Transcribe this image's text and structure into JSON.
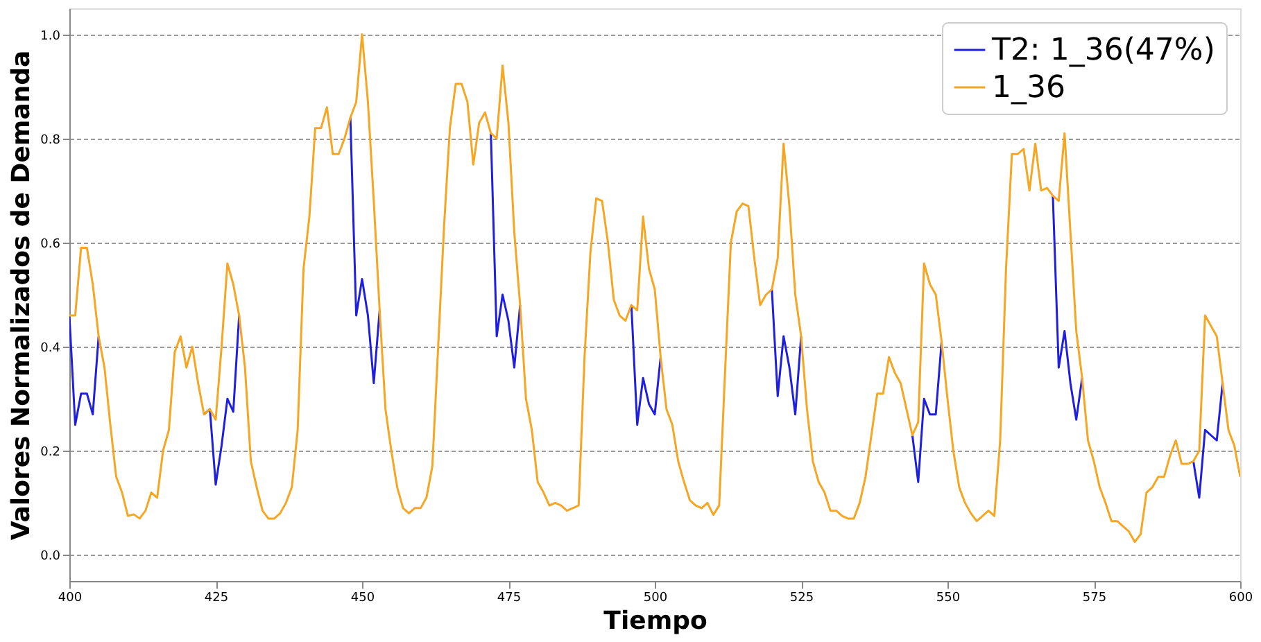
{
  "chart_data": {
    "type": "line",
    "xlabel": "Tiempo",
    "ylabel": "Valores Normalizados de Demanda",
    "x": [
      400,
      401,
      402,
      403,
      404,
      405,
      406,
      407,
      408,
      409,
      410,
      411,
      412,
      413,
      414,
      415,
      416,
      417,
      418,
      419,
      420,
      421,
      422,
      423,
      424,
      425,
      426,
      427,
      428,
      429,
      430,
      431,
      432,
      433,
      434,
      435,
      436,
      437,
      438,
      439,
      440,
      441,
      442,
      443,
      444,
      445,
      446,
      447,
      448,
      449,
      450,
      451,
      452,
      453,
      454,
      455,
      456,
      457,
      458,
      459,
      460,
      461,
      462,
      463,
      464,
      465,
      466,
      467,
      468,
      469,
      470,
      471,
      472,
      473,
      474,
      475,
      476,
      477,
      478,
      479,
      480,
      481,
      482,
      483,
      484,
      485,
      486,
      487,
      488,
      489,
      490,
      491,
      492,
      493,
      494,
      495,
      496,
      497,
      498,
      499,
      500,
      501,
      502,
      503,
      504,
      505,
      506,
      507,
      508,
      509,
      510,
      511,
      512,
      513,
      514,
      515,
      516,
      517,
      518,
      519,
      520,
      521,
      522,
      523,
      524,
      525,
      526,
      527,
      528,
      529,
      530,
      531,
      532,
      533,
      534,
      535,
      536,
      537,
      538,
      539,
      540,
      541,
      542,
      543,
      544,
      545,
      546,
      547,
      548,
      549,
      550,
      551,
      552,
      553,
      554,
      555,
      556,
      557,
      558,
      559,
      560,
      561,
      562,
      563,
      564,
      565,
      566,
      567,
      568,
      569,
      570,
      571,
      572,
      573,
      574,
      575,
      576,
      577,
      578,
      579,
      580,
      581,
      582,
      583,
      584,
      585,
      586,
      587,
      588,
      589,
      590,
      591,
      592,
      593,
      594,
      595,
      596,
      597,
      598,
      599,
      600
    ],
    "series": [
      {
        "name": "T2: 1_36(47%)",
        "color": "#1f1fe0",
        "values": [
          0.46,
          0.25,
          0.31,
          0.31,
          0.27,
          0.42,
          null,
          null,
          null,
          null,
          null,
          null,
          null,
          null,
          null,
          null,
          null,
          null,
          null,
          null,
          null,
          null,
          null,
          0.27,
          0.28,
          0.135,
          0.21,
          0.3,
          0.275,
          0.46,
          null,
          null,
          null,
          null,
          null,
          null,
          null,
          null,
          null,
          null,
          null,
          null,
          null,
          null,
          null,
          null,
          null,
          null,
          0.84,
          0.46,
          0.53,
          0.46,
          0.33,
          0.47,
          null,
          null,
          null,
          null,
          null,
          null,
          null,
          null,
          null,
          null,
          null,
          null,
          null,
          null,
          null,
          null,
          null,
          null,
          0.81,
          0.42,
          0.5,
          0.45,
          0.36,
          0.48,
          null,
          null,
          null,
          null,
          null,
          null,
          null,
          null,
          null,
          null,
          null,
          null,
          null,
          null,
          null,
          null,
          null,
          null,
          0.48,
          0.25,
          0.34,
          0.29,
          0.27,
          0.38,
          null,
          null,
          null,
          null,
          null,
          null,
          null,
          null,
          null,
          null,
          null,
          null,
          null,
          null,
          null,
          null,
          null,
          null,
          0.51,
          0.305,
          0.42,
          0.36,
          0.27,
          0.42,
          null,
          null,
          null,
          null,
          null,
          null,
          null,
          null,
          null,
          null,
          null,
          null,
          null,
          null,
          null,
          null,
          null,
          null,
          0.23,
          0.14,
          0.3,
          0.27,
          0.27,
          0.41,
          null,
          null,
          null,
          null,
          null,
          null,
          null,
          null,
          null,
          null,
          null,
          null,
          null,
          null,
          null,
          null,
          null,
          null,
          0.69,
          0.36,
          0.43,
          0.33,
          0.26,
          0.34,
          null,
          null,
          null,
          null,
          null,
          null,
          null,
          null,
          null,
          null,
          null,
          null,
          null,
          null,
          null,
          null,
          null,
          null,
          0.18,
          0.11,
          0.24,
          0.23,
          0.22,
          0.33,
          null,
          null,
          null
        ]
      },
      {
        "name": "1_36",
        "color": "#f5a623",
        "values": [
          0.46,
          0.46,
          0.59,
          0.59,
          0.52,
          0.42,
          0.36,
          0.25,
          0.15,
          0.12,
          0.075,
          0.078,
          0.07,
          0.085,
          0.12,
          0.11,
          0.2,
          0.24,
          0.39,
          0.42,
          0.36,
          0.4,
          0.33,
          0.27,
          0.28,
          0.26,
          0.4,
          0.56,
          0.52,
          0.46,
          0.36,
          0.18,
          0.13,
          0.085,
          0.07,
          0.07,
          0.08,
          0.1,
          0.13,
          0.24,
          0.55,
          0.65,
          0.82,
          0.82,
          0.86,
          0.77,
          0.77,
          0.8,
          0.84,
          0.87,
          1.0,
          0.87,
          0.68,
          0.47,
          0.28,
          0.2,
          0.13,
          0.09,
          0.08,
          0.09,
          0.09,
          0.11,
          0.17,
          0.4,
          0.63,
          0.82,
          0.905,
          0.905,
          0.87,
          0.75,
          0.83,
          0.85,
          0.81,
          0.8,
          0.94,
          0.83,
          0.62,
          0.48,
          0.3,
          0.24,
          0.14,
          0.12,
          0.095,
          0.1,
          0.095,
          0.085,
          0.09,
          0.095,
          0.38,
          0.58,
          0.685,
          0.68,
          0.6,
          0.49,
          0.46,
          0.45,
          0.48,
          0.47,
          0.65,
          0.55,
          0.51,
          0.38,
          0.28,
          0.25,
          0.18,
          0.14,
          0.105,
          0.095,
          0.09,
          0.1,
          0.077,
          0.095,
          0.35,
          0.6,
          0.66,
          0.675,
          0.67,
          0.57,
          0.48,
          0.5,
          0.51,
          0.57,
          0.79,
          0.67,
          0.5,
          0.42,
          0.28,
          0.18,
          0.14,
          0.12,
          0.085,
          0.085,
          0.075,
          0.07,
          0.07,
          0.1,
          0.15,
          0.23,
          0.31,
          0.31,
          0.38,
          0.35,
          0.33,
          0.28,
          0.23,
          0.255,
          0.56,
          0.52,
          0.5,
          0.41,
          0.3,
          0.2,
          0.13,
          0.1,
          0.08,
          0.065,
          0.075,
          0.085,
          0.075,
          0.22,
          0.55,
          0.77,
          0.77,
          0.78,
          0.7,
          0.79,
          0.7,
          0.705,
          0.69,
          0.68,
          0.81,
          0.62,
          0.43,
          0.34,
          0.22,
          0.18,
          0.13,
          0.1,
          0.065,
          0.065,
          0.055,
          0.045,
          0.025,
          0.04,
          0.12,
          0.13,
          0.15,
          0.15,
          0.19,
          0.22,
          0.175,
          0.175,
          0.18,
          0.2,
          0.46,
          0.44,
          0.42,
          0.33,
          0.24,
          0.21,
          0.15
        ]
      }
    ],
    "xlim": [
      400,
      600
    ],
    "xticks": [
      400,
      425,
      450,
      475,
      500,
      525,
      550,
      575,
      600
    ],
    "ylim": [
      -0.05,
      1.05
    ],
    "yticks": [
      {
        "value": 0,
        "label": "0.0"
      },
      {
        "value": 0.2,
        "label": "0.2"
      },
      {
        "value": 0.4,
        "label": "0.4"
      },
      {
        "value": 0.6,
        "label": "0.6"
      },
      {
        "value": 0.8,
        "label": "0.8"
      },
      {
        "value": 1.0,
        "label": "1.0"
      }
    ],
    "grid": "y",
    "legend": "top right",
    "marker": "none",
    "line_style": "solid"
  }
}
